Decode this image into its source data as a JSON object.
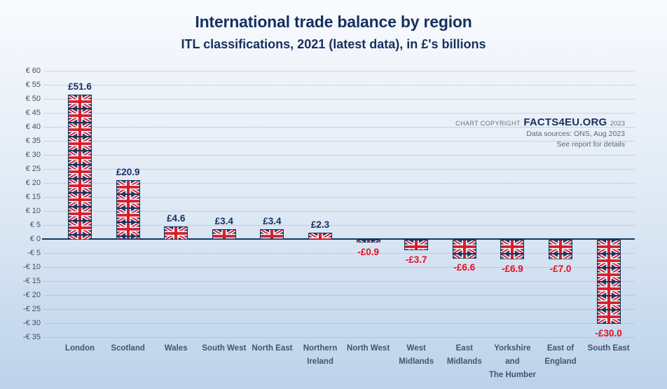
{
  "page": {
    "window_title": "International trade balance by region"
  },
  "copyright": {
    "prefix": "CHART COPYRIGHT",
    "brand": "FACTS4EU.ORG",
    "year": "2023",
    "line2": "Data sources: ONS, Aug 2023",
    "line3": "See report for details"
  },
  "colors": {
    "title_navy": "#16305f",
    "positive_label": "#16305f",
    "negative_label": "#e60e23",
    "axis_line": "#17365d",
    "gridline": "rgba(122,150,186,0.30)",
    "flag_navy": "#233a6d",
    "flag_red": "#d3202f",
    "flag_white": "#ffffff",
    "background_top": "#f9fbfe",
    "background_bottom": "#bcd2ea"
  },
  "chart_data": {
    "type": "bar",
    "title": "International trade balance by region",
    "subtitle": "ITL classifications, 2021 (latest data), in £'s billions",
    "unit": "£ billions",
    "bar_fill": "union-jack-flag-pattern",
    "grid": true,
    "legend": false,
    "categories": [
      "London",
      "Scotland",
      "Wales",
      "South West",
      "North East",
      "Northern Ireland",
      "North West",
      "West Midlands",
      "East Midlands",
      "Yorkshire and The Humber",
      "East of England",
      "South East"
    ],
    "category_label_lines": [
      [
        "London"
      ],
      [
        "Scotland"
      ],
      [
        "Wales"
      ],
      [
        "South West"
      ],
      [
        "North East"
      ],
      [
        "Northern",
        "Ireland"
      ],
      [
        "North West"
      ],
      [
        "West",
        "Midlands"
      ],
      [
        "East",
        "Midlands"
      ],
      [
        "Yorkshire",
        "and",
        "The Humber"
      ],
      [
        "East of",
        "England"
      ],
      [
        "South East"
      ]
    ],
    "values": [
      51.6,
      20.9,
      4.6,
      3.4,
      3.4,
      2.3,
      -0.9,
      -3.7,
      -6.6,
      -6.9,
      -7.0,
      -30.0
    ],
    "value_labels": [
      "£51.6",
      "£20.9",
      "£4.6",
      "£3.4",
      "£3.4",
      "£2.3",
      "-£0.9",
      "-£3.7",
      "-£6.6",
      "-£6.9",
      "-£7.0",
      "-£30.0"
    ],
    "y_axis": {
      "min": -35,
      "max": 60,
      "step": 5,
      "tick_labels": [
        "€ 60",
        "€ 55",
        "€ 50",
        "€ 45",
        "€ 40",
        "€ 35",
        "€ 30",
        "€ 25",
        "€ 20",
        "€ 15",
        "€ 10",
        "€ 5",
        "€ 0",
        "-€ 5",
        "-€ 10",
        "-€ 15",
        "-€ 20",
        "-€ 25",
        "-€ 30",
        "-€ 35"
      ]
    }
  }
}
